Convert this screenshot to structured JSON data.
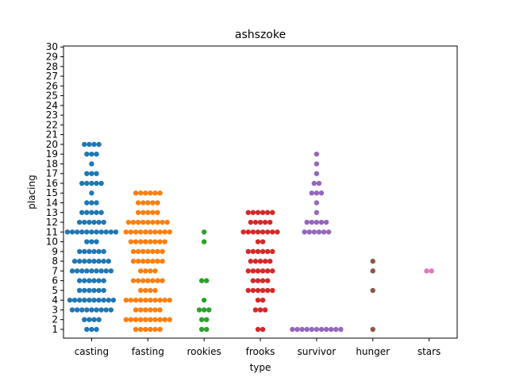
{
  "chart_data": {
    "type": "scatter",
    "style": "swarm",
    "title": "ashszoke",
    "xlabel": "type",
    "ylabel": "placing",
    "categories": [
      "casting",
      "fasting",
      "rookies",
      "frooks",
      "survivor",
      "hunger",
      "stars"
    ],
    "yticks": [
      "1",
      "2",
      "3",
      "4",
      "5",
      "6",
      "7",
      "8",
      "9",
      "10",
      "11",
      "12",
      "13",
      "14",
      "15",
      "16",
      "17",
      "18",
      "19",
      "20",
      "21",
      "22",
      "23",
      "24",
      "25",
      "26",
      "27",
      "28",
      "29",
      "30"
    ],
    "ylim": [
      0.1,
      30.1
    ],
    "grid": false,
    "series": [
      {
        "category": "casting",
        "color": "#1f77b4",
        "counts": {
          "1": 3,
          "2": 4,
          "3": 9,
          "4": 10,
          "5": 6,
          "6": 6,
          "7": 9,
          "8": 8,
          "9": 6,
          "10": 3,
          "11": 11,
          "12": 6,
          "13": 5,
          "14": 3,
          "15": 1,
          "16": 5,
          "17": 3,
          "18": 1,
          "19": 3,
          "20": 4
        }
      },
      {
        "category": "fasting",
        "color": "#ff7f0e",
        "counts": {
          "1": 6,
          "2": 10,
          "3": 6,
          "4": 10,
          "5": 4,
          "6": 7,
          "7": 4,
          "8": 7,
          "9": 7,
          "10": 8,
          "11": 10,
          "12": 9,
          "13": 5,
          "14": 5,
          "15": 6
        }
      },
      {
        "category": "rookies",
        "color": "#2ca02c",
        "counts": {
          "1": 2,
          "2": 2,
          "3": 3,
          "4": 1,
          "6": 2,
          "10": 1,
          "11": 1
        }
      },
      {
        "category": "frooks",
        "color": "#d62728",
        "counts": {
          "1": 2,
          "3": 3,
          "4": 2,
          "5": 6,
          "6": 4,
          "7": 6,
          "8": 5,
          "9": 6,
          "10": 2,
          "11": 8,
          "12": 5,
          "13": 6
        }
      },
      {
        "category": "survivor",
        "color": "#9467bd",
        "counts": {
          "1": 11,
          "11": 6,
          "12": 5,
          "13": 1,
          "14": 1,
          "15": 3,
          "16": 2,
          "17": 1,
          "18": 1,
          "19": 1
        }
      },
      {
        "category": "hunger",
        "color": "#8c564b",
        "counts": {
          "1": 1,
          "5": 1,
          "7": 1,
          "8": 1
        }
      },
      {
        "category": "stars",
        "color": "#e377c2",
        "counts": {
          "7": 2
        }
      }
    ]
  }
}
